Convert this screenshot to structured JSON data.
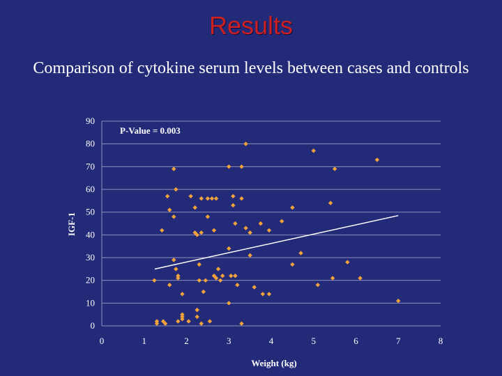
{
  "slide": {
    "title": "Results",
    "subtitle": "Comparison of cytokine serum levels between cases and controls"
  },
  "colors": {
    "background": "#232a78",
    "title": "#cc1f1f",
    "points": "#f2a23a",
    "gridline": "#8c8fb8",
    "trendline": "#ffffff"
  },
  "chart_data": {
    "type": "scatter",
    "title": "",
    "xlabel": "Weight (kg)",
    "ylabel": "IGF-1",
    "xlim": [
      0,
      8
    ],
    "ylim": [
      0,
      90
    ],
    "xticks": [
      0,
      1,
      2,
      3,
      4,
      5,
      6,
      7,
      8
    ],
    "yticks": [
      0,
      10,
      20,
      30,
      40,
      50,
      60,
      70,
      80,
      90
    ],
    "grid": "horizontal",
    "annotation": "P-Value = 0.003",
    "trendline": {
      "x": [
        1.25,
        7.0
      ],
      "y": [
        25,
        48.5
      ]
    },
    "points": [
      [
        1.24,
        20
      ],
      [
        1.3,
        2
      ],
      [
        1.3,
        1
      ],
      [
        1.42,
        42
      ],
      [
        1.45,
        2
      ],
      [
        1.5,
        1
      ],
      [
        1.55,
        57
      ],
      [
        1.6,
        51
      ],
      [
        1.6,
        18
      ],
      [
        1.7,
        48
      ],
      [
        1.7,
        69
      ],
      [
        1.7,
        29
      ],
      [
        1.75,
        60
      ],
      [
        1.75,
        25
      ],
      [
        1.8,
        22
      ],
      [
        1.8,
        21
      ],
      [
        1.8,
        2
      ],
      [
        1.9,
        5
      ],
      [
        1.9,
        4
      ],
      [
        1.9,
        3
      ],
      [
        1.9,
        14
      ],
      [
        2.05,
        2
      ],
      [
        2.1,
        57
      ],
      [
        2.2,
        52
      ],
      [
        2.2,
        41
      ],
      [
        2.25,
        40
      ],
      [
        2.25,
        7
      ],
      [
        2.25,
        4
      ],
      [
        2.3,
        27
      ],
      [
        2.3,
        20
      ],
      [
        2.35,
        56
      ],
      [
        2.35,
        41
      ],
      [
        2.35,
        1
      ],
      [
        2.4,
        15
      ],
      [
        2.45,
        20
      ],
      [
        2.5,
        56
      ],
      [
        2.5,
        48
      ],
      [
        2.55,
        2
      ],
      [
        2.6,
        56
      ],
      [
        2.65,
        42
      ],
      [
        2.65,
        22
      ],
      [
        2.7,
        56
      ],
      [
        2.7,
        21
      ],
      [
        2.75,
        25
      ],
      [
        2.8,
        20
      ],
      [
        2.85,
        22
      ],
      [
        3.0,
        70
      ],
      [
        3.0,
        34
      ],
      [
        3.0,
        10
      ],
      [
        3.05,
        22
      ],
      [
        3.1,
        57
      ],
      [
        3.1,
        53
      ],
      [
        3.15,
        45
      ],
      [
        3.15,
        22
      ],
      [
        3.2,
        18
      ],
      [
        3.3,
        70
      ],
      [
        3.3,
        56
      ],
      [
        3.3,
        1
      ],
      [
        3.4,
        80
      ],
      [
        3.4,
        43
      ],
      [
        3.5,
        41
      ],
      [
        3.5,
        31
      ],
      [
        3.6,
        17
      ],
      [
        3.75,
        45
      ],
      [
        3.8,
        14
      ],
      [
        3.95,
        14
      ],
      [
        3.95,
        42
      ],
      [
        4.25,
        46
      ],
      [
        4.5,
        52
      ],
      [
        4.5,
        27
      ],
      [
        4.7,
        32
      ],
      [
        5.0,
        77
      ],
      [
        5.1,
        18
      ],
      [
        5.4,
        54
      ],
      [
        5.45,
        21
      ],
      [
        5.5,
        69
      ],
      [
        5.8,
        28
      ],
      [
        6.1,
        21
      ],
      [
        6.5,
        73
      ],
      [
        7.0,
        11
      ]
    ]
  }
}
